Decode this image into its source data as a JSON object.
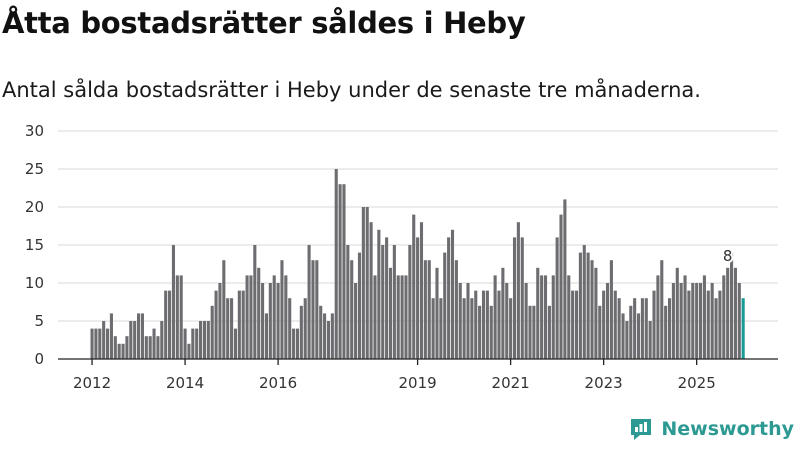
{
  "header": {
    "title": "Åtta bostadsrätter såldes i Heby",
    "subtitle": "Antal sålda bostadsrätter i Heby under de senaste tre månaderna."
  },
  "brand": {
    "name": "Newsworthy",
    "icon": "newsworthy-logo-icon",
    "color": "#2c9a93"
  },
  "colors": {
    "bar": "#6d6c70",
    "highlight": "#1a9a94",
    "grid": "#d9d9d9",
    "axis": "#222222"
  },
  "chart_data": {
    "type": "bar",
    "title": "Åtta bostadsrätter såldes i Heby",
    "subtitle": "Antal sålda bostadsrätter i Heby under de senaste tre månaderna.",
    "xlabel": "",
    "ylabel": "",
    "ylim": [
      0,
      30
    ],
    "yticks": [
      0,
      5,
      10,
      15,
      20,
      25,
      30
    ],
    "grid": true,
    "start": "2012-01",
    "frequency": "monthly",
    "xticks": [
      {
        "label": "2012",
        "month": "2012-01"
      },
      {
        "label": "2014",
        "month": "2014-01"
      },
      {
        "label": "2016",
        "month": "2016-01"
      },
      {
        "label": "2019",
        "month": "2019-01"
      },
      {
        "label": "2021",
        "month": "2021-01"
      },
      {
        "label": "2023",
        "month": "2023-01"
      },
      {
        "label": "2025",
        "month": "2025-01"
      }
    ],
    "values": [
      4,
      4,
      4,
      5,
      4,
      6,
      3,
      2,
      2,
      3,
      5,
      5,
      6,
      6,
      3,
      3,
      4,
      3,
      5,
      9,
      9,
      15,
      11,
      11,
      4,
      2,
      4,
      4,
      5,
      5,
      5,
      7,
      9,
      10,
      13,
      8,
      8,
      4,
      9,
      9,
      11,
      11,
      15,
      12,
      10,
      6,
      10,
      11,
      10,
      13,
      11,
      8,
      4,
      4,
      7,
      8,
      15,
      13,
      13,
      7,
      6,
      5,
      6,
      25,
      23,
      23,
      15,
      13,
      10,
      14,
      20,
      20,
      18,
      11,
      17,
      15,
      16,
      12,
      15,
      11,
      11,
      11,
      15,
      19,
      16,
      18,
      13,
      13,
      8,
      12,
      8,
      14,
      16,
      17,
      13,
      10,
      8,
      10,
      8,
      9,
      7,
      9,
      9,
      7,
      11,
      9,
      12,
      10,
      8,
      16,
      18,
      16,
      10,
      7,
      7,
      12,
      11,
      11,
      7,
      11,
      16,
      19,
      21,
      11,
      9,
      9,
      14,
      15,
      14,
      13,
      12,
      7,
      9,
      10,
      13,
      9,
      8,
      6,
      5,
      7,
      8,
      6,
      8,
      8,
      5,
      9,
      11,
      13,
      7,
      8,
      10,
      12,
      10,
      11,
      9,
      10,
      10,
      10,
      11,
      9,
      10,
      8,
      9,
      11,
      12,
      14,
      12,
      10,
      8
    ],
    "highlight_last": true,
    "annotations": [
      {
        "text": "8",
        "month": "2025-09"
      }
    ]
  }
}
